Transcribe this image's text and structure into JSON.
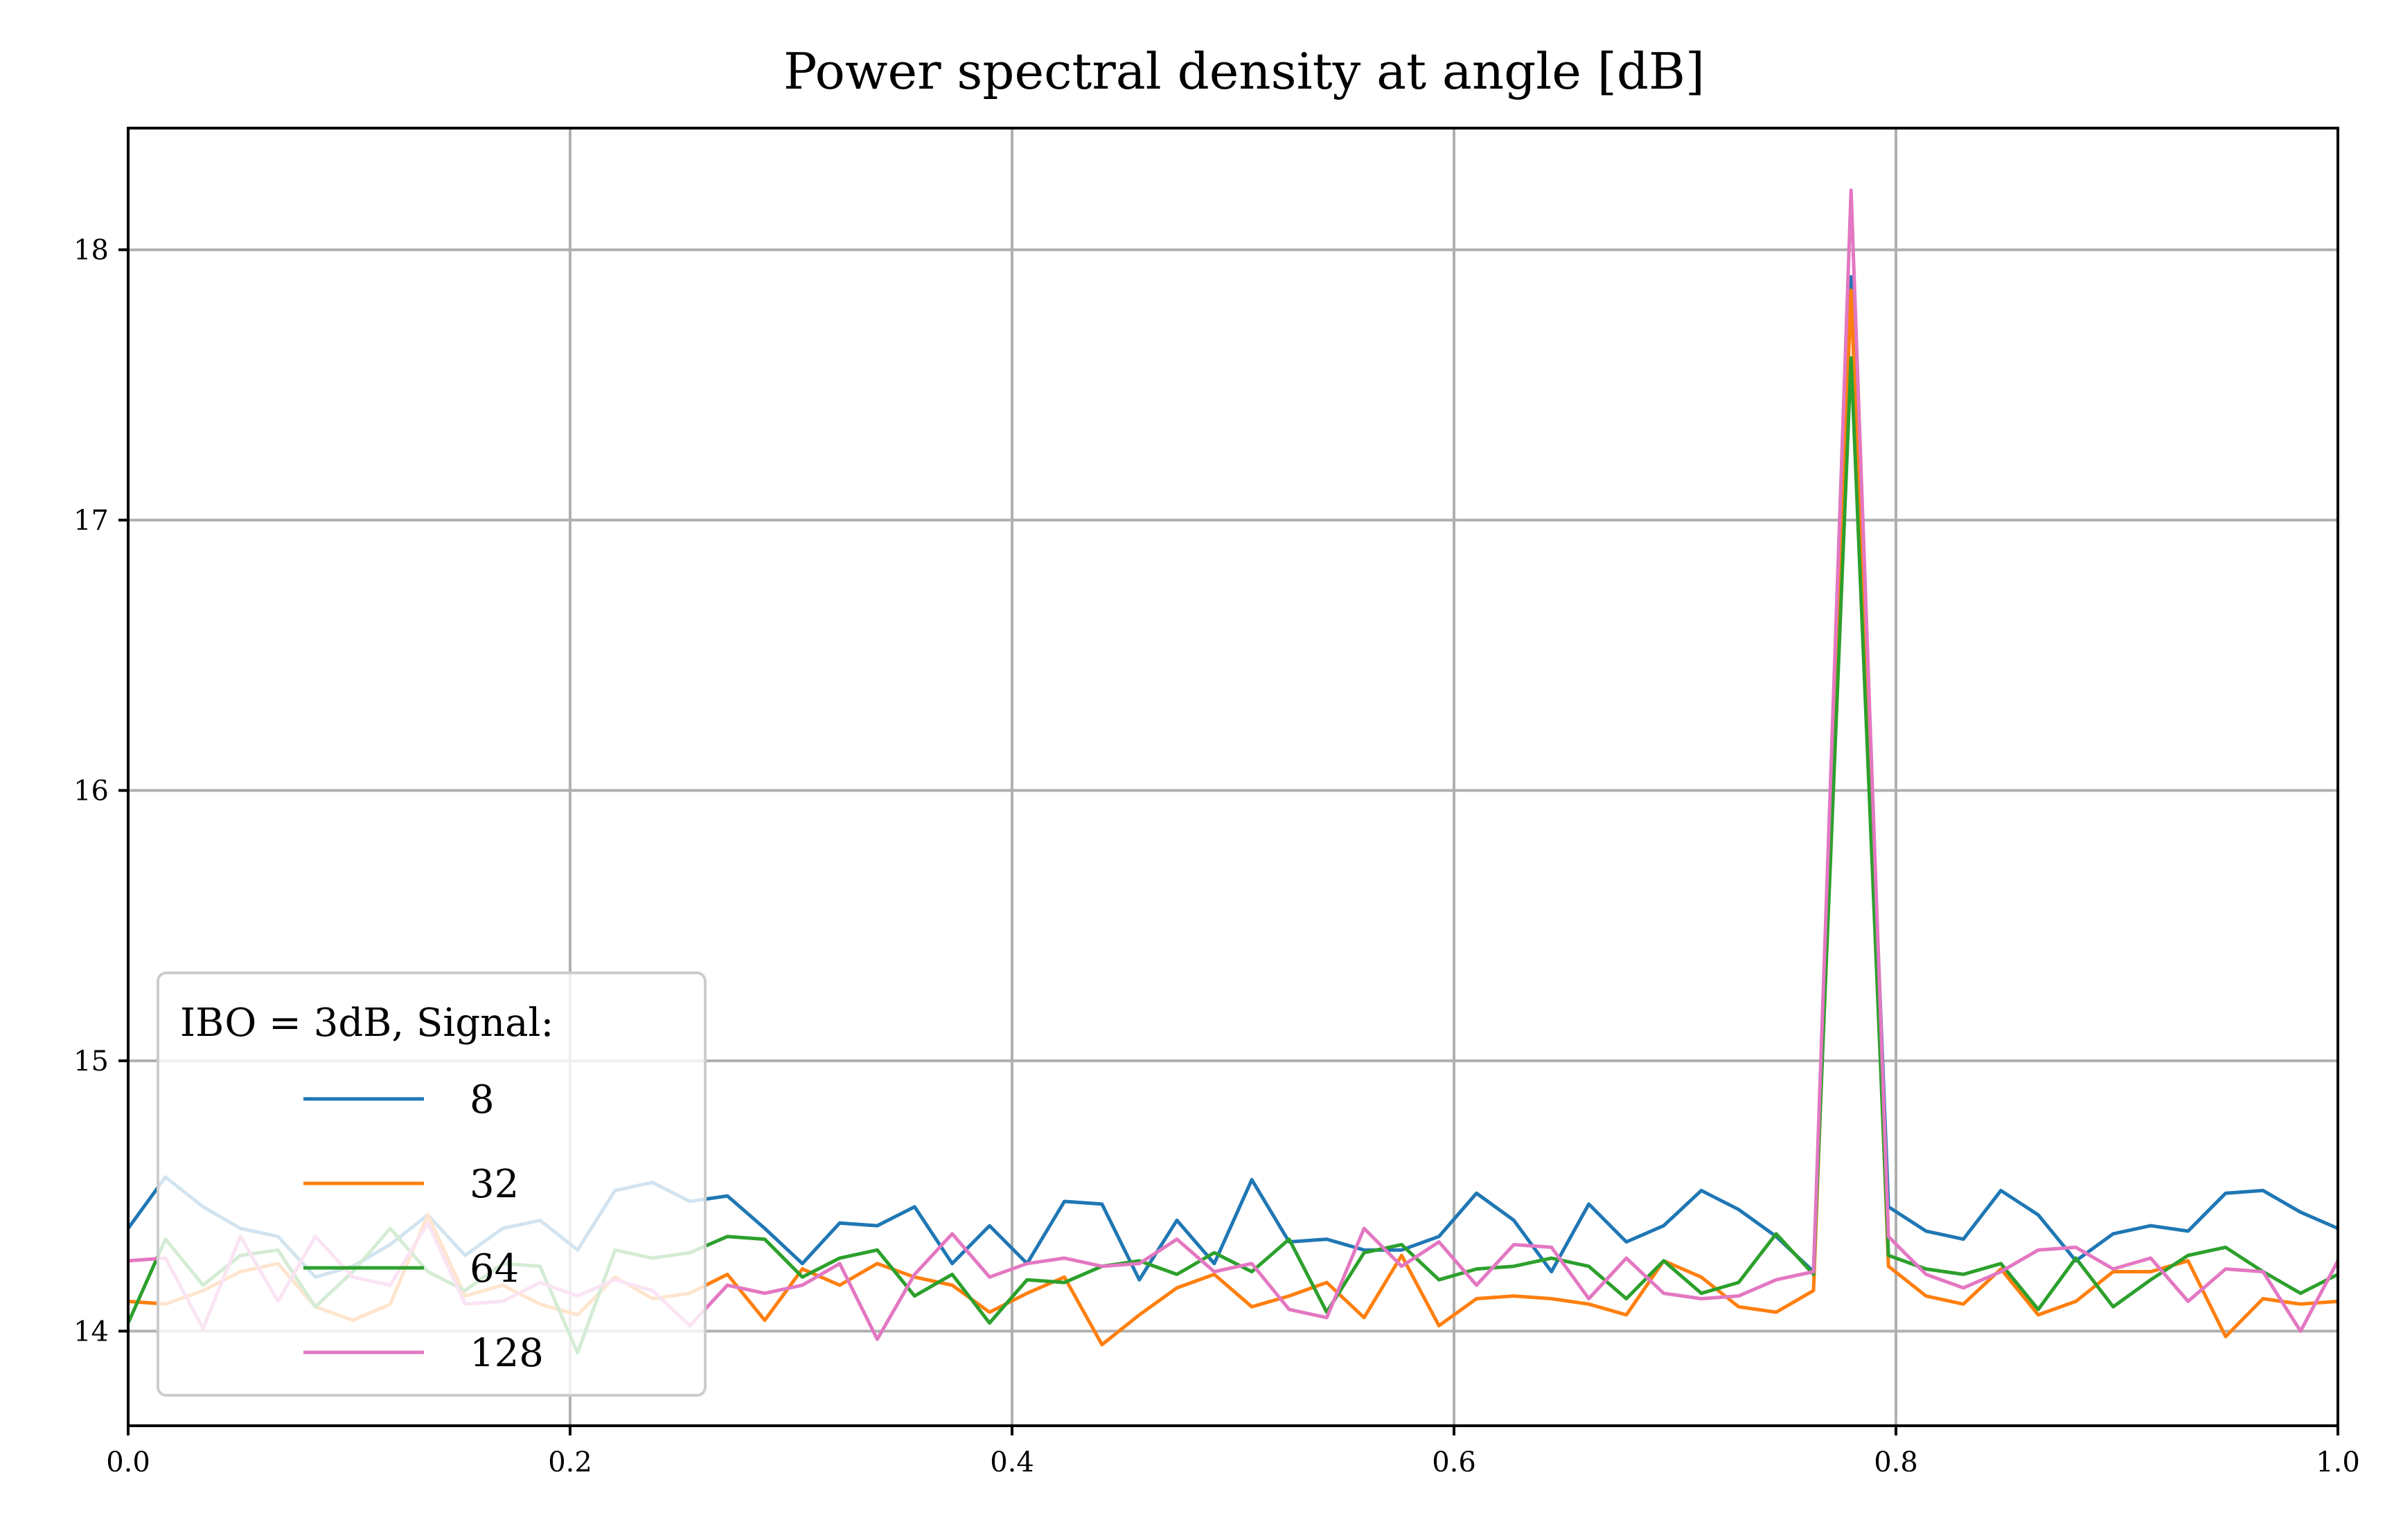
{
  "chart_data": {
    "type": "line",
    "title": "Power spectral density at angle [dB]",
    "xlabel": "",
    "ylabel": "",
    "xlim": [
      0.0,
      1.0
    ],
    "ylim": [
      13.65,
      18.45
    ],
    "grid": true,
    "x_ticks": [
      {
        "value": 0.0,
        "label": "0.0"
      },
      {
        "value": 0.2,
        "label": "0.2"
      },
      {
        "value": 0.4,
        "label": "0.4"
      },
      {
        "value": 0.6,
        "label": "0.6"
      },
      {
        "value": 0.8,
        "label": "0.8"
      },
      {
        "value": 1.0,
        "label": "1.0"
      }
    ],
    "y_ticks": [
      {
        "value": 14,
        "label": "14"
      },
      {
        "value": 15,
        "label": "15"
      },
      {
        "value": 16,
        "label": "16"
      },
      {
        "value": 17,
        "label": "17"
      },
      {
        "value": 18,
        "label": "18"
      }
    ],
    "legend": {
      "title": "IBO = 3dB, Signal:",
      "placement": "lower-left"
    },
    "x": [
      0.0,
      0.0169,
      0.0339,
      0.0508,
      0.0678,
      0.0847,
      0.1017,
      0.1186,
      0.1356,
      0.1525,
      0.1695,
      0.1864,
      0.2034,
      0.2203,
      0.2373,
      0.2542,
      0.2712,
      0.2881,
      0.3051,
      0.322,
      0.339,
      0.3559,
      0.3729,
      0.3898,
      0.4068,
      0.4237,
      0.4407,
      0.4576,
      0.4746,
      0.4915,
      0.5085,
      0.5254,
      0.5424,
      0.5593,
      0.5763,
      0.5932,
      0.6102,
      0.6271,
      0.6441,
      0.661,
      0.678,
      0.6949,
      0.7119,
      0.7288,
      0.7458,
      0.7627,
      0.7797,
      0.7966,
      0.8136,
      0.8305,
      0.8475,
      0.8644,
      0.8814,
      0.8983,
      0.9153,
      0.9322,
      0.9492,
      0.9661,
      0.9831,
      1.0
    ],
    "series": [
      {
        "name": "8",
        "color": "#1f77b4",
        "values": [
          14.38,
          14.57,
          14.46,
          14.38,
          14.35,
          14.2,
          14.24,
          14.32,
          14.43,
          14.28,
          14.38,
          14.41,
          14.3,
          14.52,
          14.55,
          14.48,
          14.5,
          14.38,
          14.25,
          14.4,
          14.39,
          14.46,
          14.25,
          14.39,
          14.25,
          14.48,
          14.47,
          14.19,
          14.41,
          14.25,
          14.56,
          14.33,
          14.34,
          14.3,
          14.3,
          14.35,
          14.51,
          14.41,
          14.22,
          14.47,
          14.33,
          14.39,
          14.52,
          14.45,
          14.35,
          14.22,
          17.9,
          14.46,
          14.37,
          14.34,
          14.52,
          14.43,
          14.26,
          14.36,
          14.39,
          14.37,
          14.51,
          14.52,
          14.44,
          14.38
        ]
      },
      {
        "name": "32",
        "color": "#ff7f0e",
        "values": [
          14.11,
          14.1,
          14.15,
          14.22,
          14.25,
          14.09,
          14.04,
          14.1,
          14.43,
          14.13,
          14.17,
          14.1,
          14.06,
          14.2,
          14.12,
          14.14,
          14.21,
          14.04,
          14.23,
          14.17,
          14.25,
          14.2,
          14.17,
          14.07,
          14.14,
          14.2,
          13.95,
          14.06,
          14.16,
          14.21,
          14.09,
          14.13,
          14.18,
          14.05,
          14.28,
          14.02,
          14.12,
          14.13,
          14.12,
          14.1,
          14.06,
          14.26,
          14.2,
          14.09,
          14.07,
          14.15,
          17.85,
          14.24,
          14.13,
          14.1,
          14.23,
          14.06,
          14.11,
          14.22,
          14.22,
          14.26,
          13.98,
          14.12,
          14.1,
          14.11
        ]
      },
      {
        "name": "64",
        "color": "#2ca02c",
        "values": [
          14.03,
          14.34,
          14.17,
          14.28,
          14.3,
          14.09,
          14.22,
          14.38,
          14.22,
          14.15,
          14.25,
          14.24,
          13.92,
          14.3,
          14.27,
          14.29,
          14.35,
          14.34,
          14.2,
          14.27,
          14.3,
          14.13,
          14.21,
          14.03,
          14.19,
          14.18,
          14.24,
          14.26,
          14.21,
          14.29,
          14.22,
          14.34,
          14.07,
          14.29,
          14.32,
          14.19,
          14.23,
          14.24,
          14.27,
          14.24,
          14.12,
          14.26,
          14.14,
          14.18,
          14.36,
          14.21,
          17.6,
          14.28,
          14.23,
          14.21,
          14.25,
          14.08,
          14.27,
          14.09,
          14.19,
          14.28,
          14.31,
          14.22,
          14.14,
          14.21
        ]
      },
      {
        "name": "128",
        "color": "#e377c2",
        "values": [
          14.26,
          14.27,
          14.01,
          14.35,
          14.11,
          14.35,
          14.2,
          14.17,
          14.4,
          14.1,
          14.11,
          14.18,
          14.13,
          14.19,
          14.15,
          14.02,
          14.17,
          14.14,
          14.17,
          14.25,
          13.97,
          14.21,
          14.36,
          14.2,
          14.25,
          14.27,
          14.24,
          14.25,
          14.34,
          14.22,
          14.25,
          14.08,
          14.05,
          14.38,
          14.24,
          14.33,
          14.17,
          14.32,
          14.31,
          14.12,
          14.27,
          14.14,
          14.12,
          14.13,
          14.19,
          14.22,
          18.22,
          14.35,
          14.21,
          14.16,
          14.22,
          14.3,
          14.31,
          14.23,
          14.27,
          14.11,
          14.23,
          14.22,
          14.0,
          14.26
        ]
      }
    ]
  }
}
